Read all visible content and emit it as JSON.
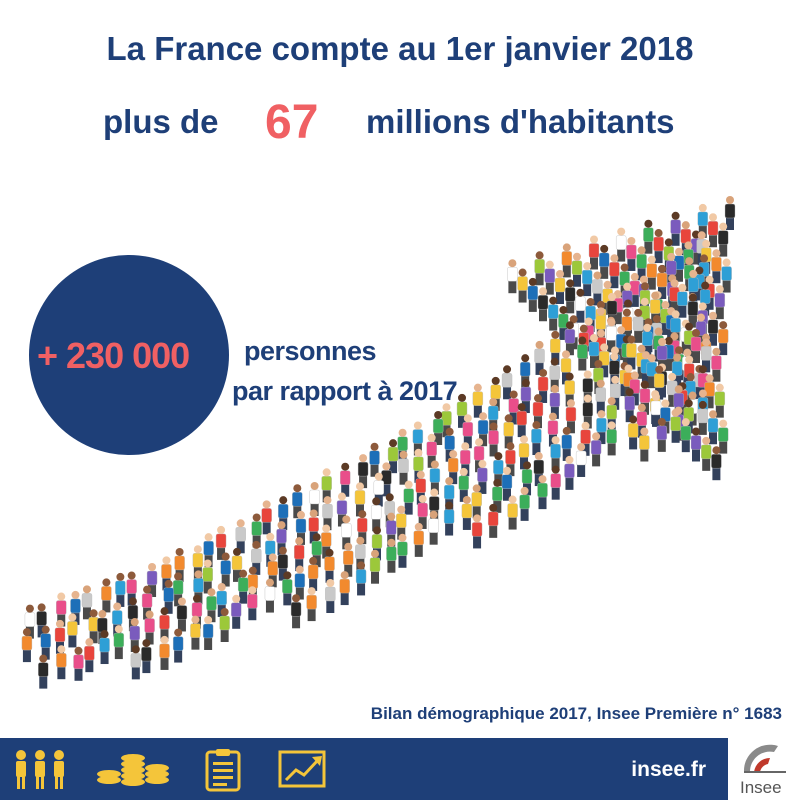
{
  "headline": {
    "line1": "La France compte au 1er janvier 2018",
    "prefix": "plus de",
    "number": "67",
    "suffix": "millions d'habitants"
  },
  "increase": {
    "value": "+ 230 000",
    "label_line1": "personnes",
    "label_line2": "par rapport à 2017"
  },
  "source": "Bilan démographique 2017, Insee Première n° 1683",
  "footer": {
    "site": "insee.fr",
    "icons": [
      "people-icon",
      "coins-icon",
      "clipboard-icon",
      "chart-trend-icon"
    ],
    "logo_text": "Insee"
  },
  "colors": {
    "navy": "#1e3f78",
    "accent": "#f06063",
    "gold": "#f4c53a"
  }
}
